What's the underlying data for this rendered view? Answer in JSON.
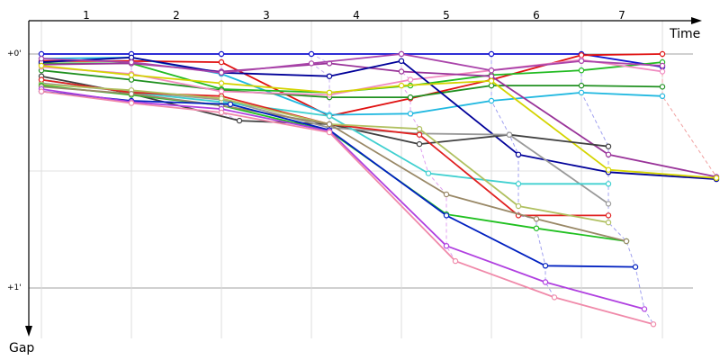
{
  "chart_data": {
    "type": "line",
    "x_axis_label": "Time",
    "y_axis_label": "Gap",
    "x_categories": [
      "1",
      "2",
      "3",
      "4",
      "5",
      "6",
      "7"
    ],
    "y_ticks": [
      {
        "value": 0,
        "label": "+0'"
      },
      {
        "value": 1,
        "label": "+1'"
      }
    ],
    "y_range": [
      -0.12,
      1.22
    ],
    "grid": true,
    "lap_boundaries": [
      0.0,
      1.0,
      2.0,
      3.0,
      4.0,
      5.0,
      6.0,
      6.9
    ],
    "series": [
      {
        "color": "#1010d0",
        "points": [
          [
            0.0,
            0.0
          ],
          [
            1.0,
            0.0
          ],
          [
            2.0,
            0.0
          ],
          [
            3.0,
            0.0
          ],
          [
            4.0,
            0.0
          ],
          [
            5.0,
            0.0
          ],
          [
            6.0,
            0.0
          ],
          [
            6.9,
            0.055
          ]
        ]
      },
      {
        "color": "#e01010",
        "points": [
          [
            0.0,
            0.03
          ],
          [
            1.0,
            0.03
          ],
          [
            2.0,
            0.035
          ],
          [
            3.2,
            0.265
          ],
          [
            4.1,
            0.19
          ],
          [
            5.0,
            0.11
          ],
          [
            6.0,
            0.005
          ],
          [
            6.9,
            0.0
          ]
        ]
      },
      {
        "color": "#20b8e0",
        "points": [
          [
            0.0,
            0.02
          ],
          [
            1.0,
            0.015
          ],
          [
            2.0,
            0.085
          ],
          [
            3.2,
            0.26
          ],
          [
            4.1,
            0.255
          ],
          [
            5.0,
            0.2
          ],
          [
            6.0,
            0.165
          ],
          [
            6.9,
            0.18
          ]
        ]
      },
      {
        "color": "#22bb22",
        "points": [
          [
            0.0,
            0.04
          ],
          [
            1.0,
            0.04
          ],
          [
            2.0,
            0.15
          ],
          [
            3.2,
            0.165
          ],
          [
            4.1,
            0.135
          ],
          [
            5.0,
            0.09
          ],
          [
            6.0,
            0.07
          ],
          [
            6.9,
            0.035
          ]
        ]
      },
      {
        "color": "#209020",
        "points": [
          [
            0.0,
            0.07
          ],
          [
            1.0,
            0.11
          ],
          [
            2.0,
            0.155
          ],
          [
            3.2,
            0.185
          ],
          [
            4.1,
            0.185
          ],
          [
            5.0,
            0.135
          ],
          [
            6.0,
            0.135
          ],
          [
            6.9,
            0.14
          ]
        ]
      },
      {
        "color": "#f08ac0",
        "points": [
          [
            0.0,
            0.055
          ],
          [
            1.0,
            0.085
          ],
          [
            2.0,
            0.16
          ],
          [
            3.2,
            0.175
          ],
          [
            4.1,
            0.11
          ],
          [
            5.0,
            0.07
          ],
          [
            6.0,
            0.025
          ],
          [
            6.9,
            0.075
          ]
        ]
      },
      {
        "color": "#993399",
        "points": [
          [
            0.0,
            0.045
          ],
          [
            1.0,
            0.04
          ],
          [
            2.0,
            0.075
          ],
          [
            3.2,
            0.04
          ],
          [
            4.0,
            0.075
          ],
          [
            5.0,
            0.095
          ],
          [
            6.3,
            0.43
          ],
          [
            7.5,
            0.525
          ]
        ]
      },
      {
        "color": "#000099",
        "points": [
          [
            0.0,
            0.035
          ],
          [
            1.0,
            0.015
          ],
          [
            2.0,
            0.08
          ],
          [
            3.2,
            0.095
          ],
          [
            4.0,
            0.03
          ],
          [
            5.3,
            0.43
          ],
          [
            6.3,
            0.505
          ],
          [
            7.5,
            0.535
          ]
        ]
      },
      {
        "color": "#d4d400",
        "points": [
          [
            0.0,
            0.05
          ],
          [
            1.0,
            0.09
          ],
          [
            2.0,
            0.125
          ],
          [
            3.2,
            0.165
          ],
          [
            4.0,
            0.135
          ],
          [
            5.0,
            0.115
          ],
          [
            6.3,
            0.495
          ],
          [
            7.5,
            0.53
          ]
        ]
      },
      {
        "color": "#aa44aa",
        "points": [
          [
            0.0,
            0.02
          ],
          [
            1.0,
            0.035
          ],
          [
            2.0,
            0.08
          ],
          [
            3.0,
            0.04
          ],
          [
            4.0,
            0.0
          ],
          [
            5.0,
            0.07
          ],
          [
            6.0,
            0.03
          ],
          [
            6.9,
            0.05
          ]
        ]
      },
      {
        "color": "#404040",
        "points": [
          [
            0.0,
            0.095
          ],
          [
            1.0,
            0.17
          ],
          [
            2.2,
            0.285
          ],
          [
            3.2,
            0.3
          ],
          [
            4.2,
            0.385
          ],
          [
            5.2,
            0.345
          ],
          [
            6.3,
            0.395
          ]
        ]
      },
      {
        "color": "#999999",
        "points": [
          [
            0.0,
            0.125
          ],
          [
            1.0,
            0.16
          ],
          [
            2.0,
            0.195
          ],
          [
            3.2,
            0.315
          ],
          [
            4.2,
            0.34
          ],
          [
            5.2,
            0.345
          ],
          [
            6.3,
            0.64
          ]
        ]
      },
      {
        "color": "#40d0d0",
        "points": [
          [
            0.0,
            0.11
          ],
          [
            1.0,
            0.165
          ],
          [
            2.0,
            0.205
          ],
          [
            3.2,
            0.265
          ],
          [
            4.3,
            0.51
          ],
          [
            5.3,
            0.555
          ],
          [
            6.3,
            0.555
          ]
        ]
      },
      {
        "color": "#e02020",
        "points": [
          [
            0.0,
            0.11
          ],
          [
            1.0,
            0.165
          ],
          [
            2.0,
            0.18
          ],
          [
            3.2,
            0.3
          ],
          [
            4.2,
            0.345
          ],
          [
            5.3,
            0.69
          ],
          [
            6.3,
            0.69
          ]
        ]
      },
      {
        "color": "#b0c060",
        "points": [
          [
            0.0,
            0.13
          ],
          [
            1.0,
            0.155
          ],
          [
            2.0,
            0.19
          ],
          [
            3.2,
            0.3
          ],
          [
            4.2,
            0.32
          ],
          [
            5.3,
            0.65
          ],
          [
            6.3,
            0.72
          ]
        ]
      },
      {
        "color": "#20c020",
        "points": [
          [
            0.0,
            0.135
          ],
          [
            1.0,
            0.175
          ],
          [
            2.0,
            0.22
          ],
          [
            3.2,
            0.33
          ],
          [
            4.5,
            0.685
          ],
          [
            5.5,
            0.745
          ],
          [
            6.5,
            0.8
          ]
        ]
      },
      {
        "color": "#998866",
        "points": [
          [
            0.0,
            0.14
          ],
          [
            1.0,
            0.17
          ],
          [
            2.0,
            0.22
          ],
          [
            3.2,
            0.3
          ],
          [
            4.5,
            0.6
          ],
          [
            5.5,
            0.705
          ],
          [
            6.5,
            0.8
          ]
        ]
      },
      {
        "color": "#0020c0",
        "points": [
          [
            0.0,
            0.16
          ],
          [
            1.0,
            0.2
          ],
          [
            2.1,
            0.215
          ],
          [
            3.2,
            0.325
          ],
          [
            4.5,
            0.69
          ],
          [
            5.6,
            0.905
          ],
          [
            6.6,
            0.91
          ]
        ]
      },
      {
        "color": "#b040e0",
        "points": [
          [
            0.0,
            0.15
          ],
          [
            1.0,
            0.205
          ],
          [
            2.0,
            0.235
          ],
          [
            3.2,
            0.33
          ],
          [
            4.5,
            0.82
          ],
          [
            5.6,
            0.975
          ],
          [
            6.7,
            1.09
          ]
        ]
      },
      {
        "color": "#f08aaa",
        "points": [
          [
            0.0,
            0.16
          ],
          [
            1.0,
            0.21
          ],
          [
            2.0,
            0.25
          ],
          [
            3.2,
            0.335
          ],
          [
            4.6,
            0.885
          ],
          [
            5.7,
            1.04
          ],
          [
            6.8,
            1.155
          ]
        ]
      }
    ]
  }
}
